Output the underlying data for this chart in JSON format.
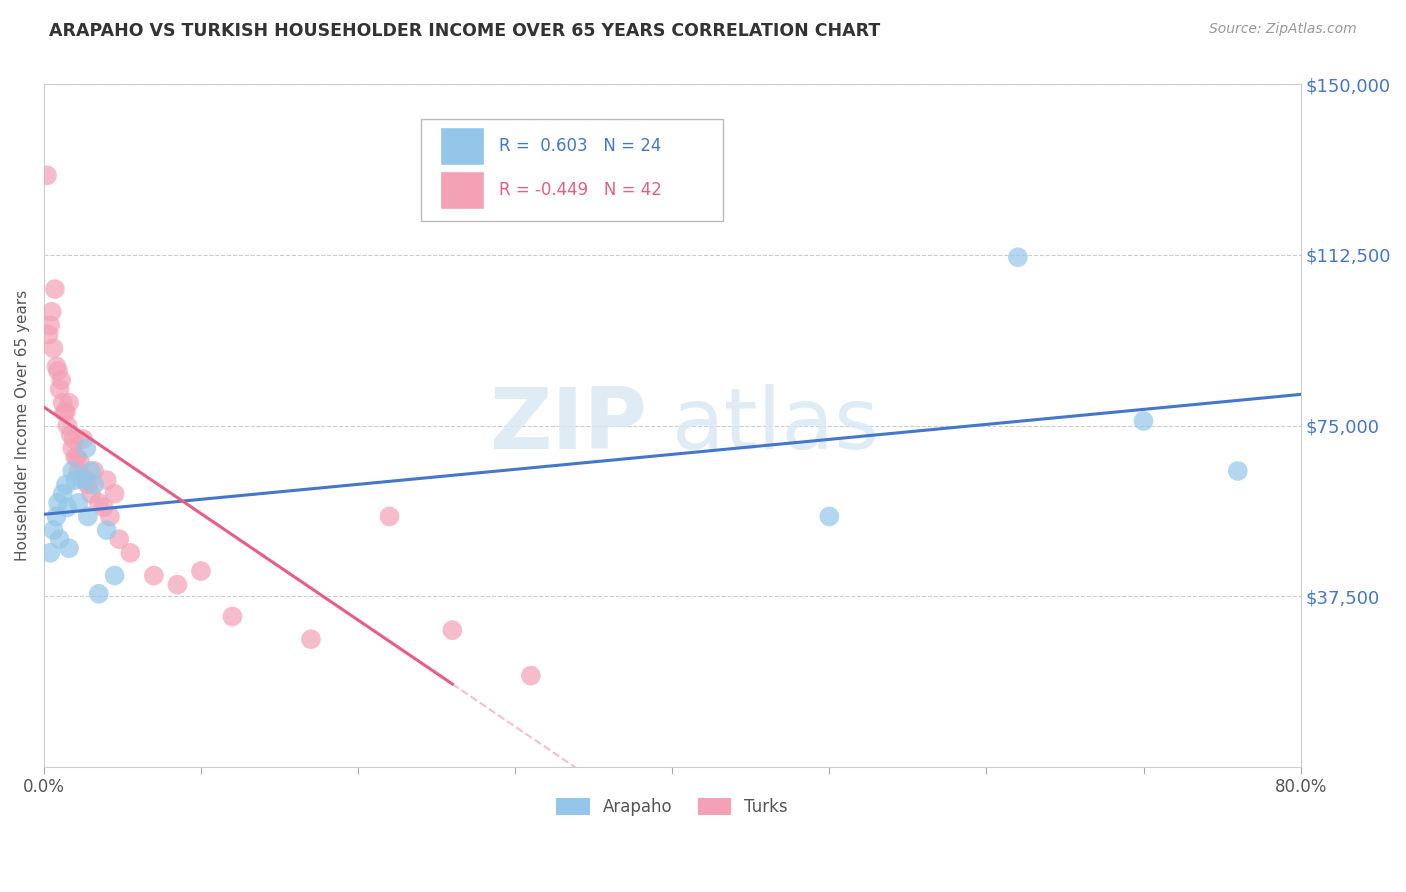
{
  "title": "ARAPAHO VS TURKISH HOUSEHOLDER INCOME OVER 65 YEARS CORRELATION CHART",
  "source": "Source: ZipAtlas.com",
  "ylabel": "Householder Income Over 65 years",
  "xlim": [
    0.0,
    0.8
  ],
  "ylim": [
    0,
    150000
  ],
  "yticks": [
    0,
    37500,
    75000,
    112500,
    150000
  ],
  "ytick_labels": [
    "",
    "$37,500",
    "$75,000",
    "$112,500",
    "$150,000"
  ],
  "xticks": [
    0.0,
    0.1,
    0.2,
    0.3,
    0.4,
    0.5,
    0.6,
    0.7,
    0.8
  ],
  "xtick_labels": [
    "0.0%",
    "",
    "",
    "",
    "",
    "",
    "",
    "",
    "80.0%"
  ],
  "watermark_zip": "ZIP",
  "watermark_atlas": "atlas",
  "legend_r_blue": " 0.603",
  "legend_n_blue": "24",
  "legend_r_pink": "-0.449",
  "legend_n_pink": "42",
  "blue_color": "#93C6E8",
  "pink_color": "#F4A0B5",
  "blue_line_color": "#4477CC",
  "pink_line_color": "#E85C85",
  "arapaho_x": [
    0.004,
    0.006,
    0.008,
    0.009,
    0.01,
    0.012,
    0.014,
    0.015,
    0.016,
    0.018,
    0.02,
    0.022,
    0.025,
    0.027,
    0.028,
    0.03,
    0.032,
    0.035,
    0.04,
    0.045,
    0.5,
    0.62,
    0.7,
    0.76
  ],
  "arapaho_y": [
    47000,
    52000,
    55000,
    58000,
    50000,
    60000,
    62000,
    57000,
    48000,
    65000,
    63000,
    58000,
    63000,
    70000,
    55000,
    65000,
    62000,
    38000,
    52000,
    42000,
    55000,
    112000,
    76000,
    65000
  ],
  "turks_x": [
    0.002,
    0.003,
    0.004,
    0.005,
    0.006,
    0.007,
    0.008,
    0.009,
    0.01,
    0.011,
    0.012,
    0.013,
    0.014,
    0.015,
    0.016,
    0.017,
    0.018,
    0.019,
    0.02,
    0.021,
    0.022,
    0.023,
    0.025,
    0.027,
    0.028,
    0.03,
    0.032,
    0.035,
    0.038,
    0.04,
    0.042,
    0.045,
    0.048,
    0.055,
    0.07,
    0.085,
    0.1,
    0.12,
    0.17,
    0.22,
    0.26,
    0.31
  ],
  "turks_y": [
    130000,
    95000,
    97000,
    100000,
    92000,
    105000,
    88000,
    87000,
    83000,
    85000,
    80000,
    78000,
    78000,
    75000,
    80000,
    73000,
    70000,
    72000,
    68000,
    68000,
    65000,
    67000,
    72000,
    63000,
    62000,
    60000,
    65000,
    58000,
    57000,
    63000,
    55000,
    60000,
    50000,
    47000,
    42000,
    40000,
    43000,
    33000,
    28000,
    55000,
    30000,
    20000
  ]
}
